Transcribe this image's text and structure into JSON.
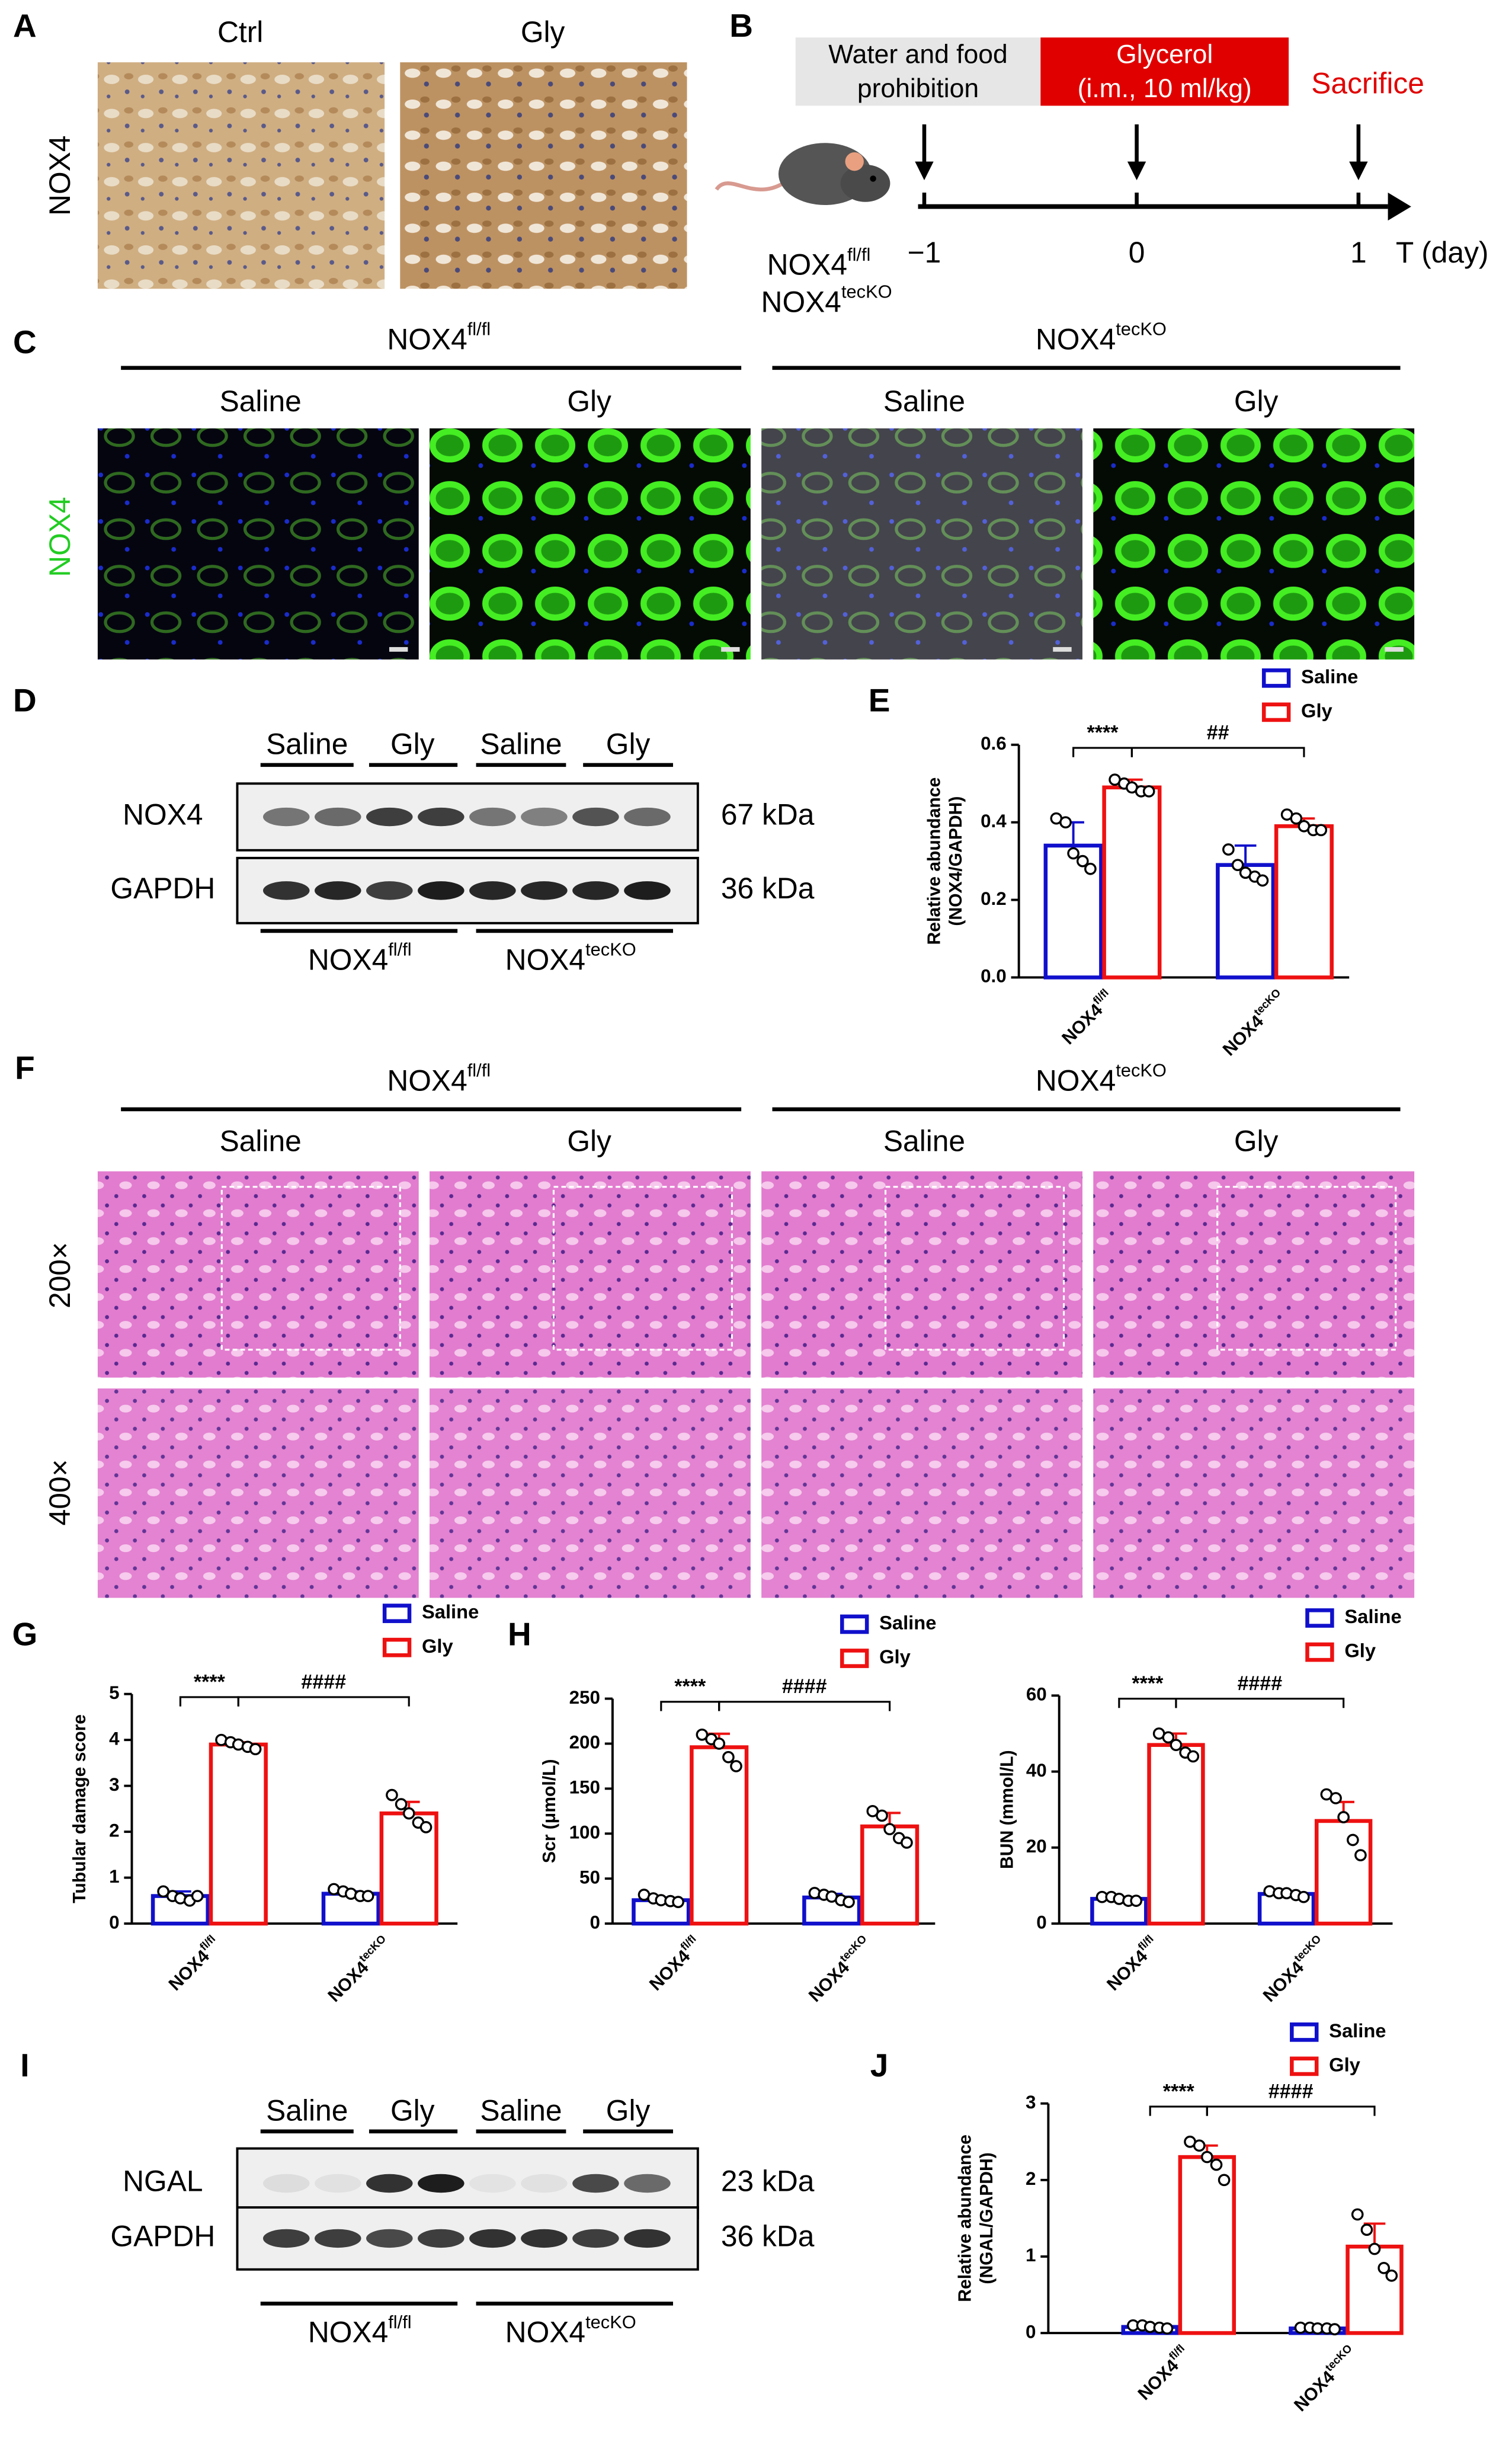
{
  "panels": {
    "A": {
      "letter": "A",
      "row_label": "NOX4",
      "columns": [
        "Ctrl",
        "Gly"
      ]
    },
    "B": {
      "letter": "B",
      "boxes": [
        [
          "Water and food",
          "prohibition"
        ],
        [
          "Glycerol",
          "(i.m., 10 ml/kg)"
        ]
      ],
      "end_label": "Sacrifice",
      "days": [
        "−1",
        "0",
        "1"
      ],
      "axis_label": "T (day)",
      "genotypes": [
        {
          "base": "NOX4",
          "sup": "fl/fl"
        },
        {
          "base": "NOX4",
          "sup": "tecKO"
        }
      ]
    },
    "C": {
      "letter": "C",
      "row_label": "NOX4",
      "genotypes": [
        {
          "base": "NOX4",
          "sup": "fl/fl"
        },
        {
          "base": "NOX4",
          "sup": "tecKO"
        }
      ],
      "columns": [
        "Saline",
        "Gly",
        "Saline",
        "Gly"
      ]
    },
    "D": {
      "letter": "D",
      "columns": [
        "Saline",
        "Gly",
        "Saline",
        "Gly"
      ],
      "rows": [
        {
          "protein": "NOX4",
          "size": "67 kDa"
        },
        {
          "protein": "GAPDH",
          "size": "36 kDa"
        }
      ],
      "genotypes": [
        {
          "base": "NOX4",
          "sup": "fl/fl"
        },
        {
          "base": "NOX4",
          "sup": "tecKO"
        }
      ]
    },
    "F": {
      "letter": "F",
      "genotypes": [
        {
          "base": "NOX4",
          "sup": "fl/fl"
        },
        {
          "base": "NOX4",
          "sup": "tecKO"
        }
      ],
      "columns": [
        "Saline",
        "Gly",
        "Saline",
        "Gly"
      ],
      "rows": [
        "200×",
        "400×"
      ]
    },
    "I": {
      "letter": "I",
      "columns": [
        "Saline",
        "Gly",
        "Saline",
        "Gly"
      ],
      "rows": [
        {
          "protein": "NGAL",
          "size": "23 kDa"
        },
        {
          "protein": "GAPDH",
          "size": "36 kDa"
        }
      ],
      "genotypes": [
        {
          "base": "NOX4",
          "sup": "fl/fl"
        },
        {
          "base": "NOX4",
          "sup": "tecKO"
        }
      ]
    }
  },
  "chart_data": [
    {
      "type": "bar",
      "panel_label": "E",
      "y_label": [
        "Relative abundance",
        "(NOX4/GAPDH)"
      ],
      "categories": [
        "NOX4",
        "NOX4"
      ],
      "category_superscripts": [
        "fl/fl",
        "tecKO"
      ],
      "series": [
        {
          "name": "Saline",
          "color": "#1010cc",
          "values": [
            0.34,
            0.29
          ],
          "errors": [
            0.06,
            0.05
          ],
          "points": [
            [
              0.41,
              0.4,
              0.32,
              0.3,
              0.28
            ],
            [
              0.33,
              0.29,
              0.27,
              0.26,
              0.25
            ]
          ]
        },
        {
          "name": "Gly",
          "color": "#ee1111",
          "values": [
            0.49,
            0.39
          ],
          "errors": [
            0.02,
            0.02
          ],
          "points": [
            [
              0.51,
              0.5,
              0.49,
              0.48,
              0.48
            ],
            [
              0.42,
              0.41,
              0.39,
              0.38,
              0.38
            ]
          ]
        }
      ],
      "ylim": [
        0,
        0.6
      ],
      "yticks": [
        {
          "value": 0,
          "label": "0.0"
        },
        0.2,
        0.4,
        0.6
      ],
      "annotations": [
        "****",
        "##"
      ]
    },
    {
      "type": "bar",
      "panel_label": "G",
      "y_label": [
        "Tubular damage score"
      ],
      "categories": [
        "NOX4",
        "NOX4"
      ],
      "category_superscripts": [
        "fl/fl",
        "tecKO"
      ],
      "series": [
        {
          "name": "Saline",
          "color": "#1010cc",
          "values": [
            0.6,
            0.65
          ],
          "errors": [
            0.1,
            0.05
          ],
          "points": [
            [
              0.7,
              0.6,
              0.55,
              0.5,
              0.6
            ],
            [
              0.75,
              0.7,
              0.65,
              0.6,
              0.6
            ]
          ]
        },
        {
          "name": "Gly",
          "color": "#ee1111",
          "values": [
            3.9,
            2.4
          ],
          "errors": [
            0.05,
            0.25
          ],
          "points": [
            [
              4.0,
              3.95,
              3.9,
              3.85,
              3.8
            ],
            [
              2.8,
              2.6,
              2.4,
              2.2,
              2.1
            ]
          ]
        }
      ],
      "ylim": [
        0,
        5
      ],
      "yticks": [
        0,
        1,
        2,
        3,
        4,
        5
      ],
      "annotations": [
        "****",
        "####"
      ]
    },
    {
      "type": "bar",
      "panel_label": "H",
      "y_label": [
        "Scr (μmol/L)"
      ],
      "categories": [
        "NOX4",
        "NOX4"
      ],
      "category_superscripts": [
        "fl/fl",
        "tecKO"
      ],
      "series": [
        {
          "name": "Saline",
          "color": "#1010cc",
          "values": [
            26,
            29
          ],
          "errors": [
            3,
            4
          ],
          "points": [
            [
              32,
              28,
              26,
              25,
              24
            ],
            [
              34,
              32,
              30,
              26,
              24
            ]
          ]
        },
        {
          "name": "Gly",
          "color": "#ee1111",
          "values": [
            196,
            108
          ],
          "errors": [
            15,
            15
          ],
          "points": [
            [
              210,
              205,
              200,
              185,
              175
            ],
            [
              125,
              120,
              105,
              95,
              90
            ]
          ]
        }
      ],
      "ylim": [
        0,
        250
      ],
      "yticks": [
        0,
        50,
        100,
        150,
        200,
        250
      ],
      "annotations": [
        "****",
        "####"
      ]
    },
    {
      "type": "bar",
      "y_label": [
        "BUN (mmol/L)"
      ],
      "categories": [
        "NOX4",
        "NOX4"
      ],
      "category_superscripts": [
        "fl/fl",
        "tecKO"
      ],
      "series": [
        {
          "name": "Saline",
          "color": "#1010cc",
          "values": [
            6.5,
            7.8
          ],
          "errors": [
            0.5,
            0.7
          ],
          "points": [
            [
              7,
              7,
              6.5,
              6,
              6
            ],
            [
              8.5,
              8,
              8,
              7.5,
              7
            ]
          ]
        },
        {
          "name": "Gly",
          "color": "#ee1111",
          "values": [
            47,
            27
          ],
          "errors": [
            3,
            5
          ],
          "points": [
            [
              50,
              49,
              47,
              45,
              44
            ],
            [
              34,
              33,
              28,
              22,
              18
            ]
          ]
        }
      ],
      "ylim": [
        0,
        60
      ],
      "yticks": [
        0,
        20,
        40,
        60
      ],
      "annotations": [
        "****",
        "####"
      ]
    },
    {
      "type": "bar",
      "panel_label": "J",
      "y_label": [
        "Relative abundance",
        "(NGAL/GAPDH)"
      ],
      "categories": [
        "NOX4",
        "NOX4"
      ],
      "category_superscripts": [
        "fl/fl",
        "tecKO"
      ],
      "series": [
        {
          "name": "Saline",
          "color": "#1010cc",
          "values": [
            0.08,
            0.06
          ],
          "errors": [
            0.02,
            0.01
          ],
          "points": [
            [
              0.1,
              0.1,
              0.08,
              0.07,
              0.06
            ],
            [
              0.07,
              0.07,
              0.06,
              0.06,
              0.05
            ]
          ]
        },
        {
          "name": "Gly",
          "color": "#ee1111",
          "values": [
            2.3,
            1.13
          ],
          "errors": [
            0.15,
            0.3
          ],
          "points": [
            [
              2.5,
              2.45,
              2.3,
              2.2,
              2.0
            ],
            [
              1.55,
              1.35,
              1.1,
              0.85,
              0.75
            ]
          ]
        }
      ],
      "ylim": [
        0,
        3
      ],
      "yticks": [
        0,
        1,
        2,
        3
      ],
      "annotations": [
        "****",
        "####"
      ]
    }
  ]
}
